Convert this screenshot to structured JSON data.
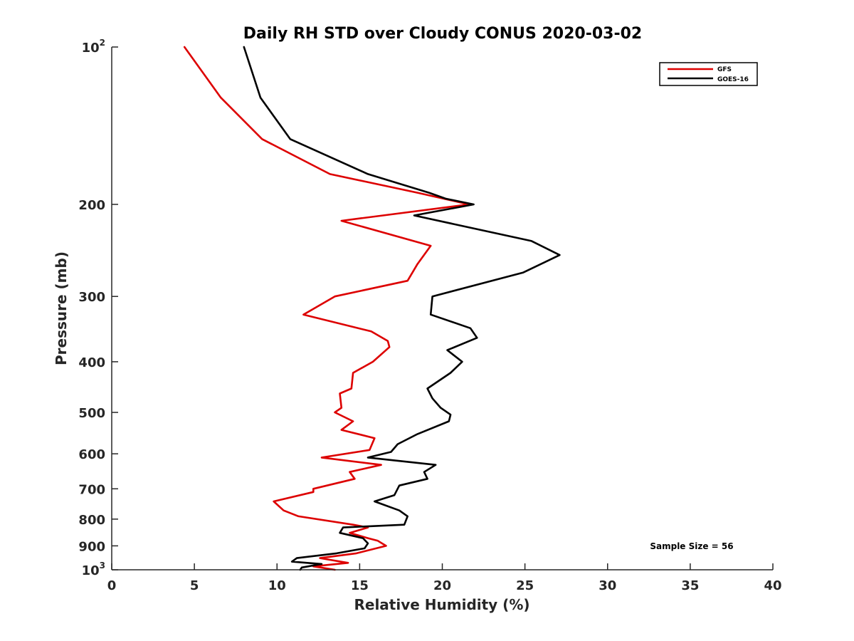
{
  "chart_data": {
    "type": "line",
    "title": "Daily RH STD over Cloudy CONUS 2020-03-02",
    "xlabel": "Relative Humidity (%)",
    "ylabel": "Pressure (mb)",
    "xlim": [
      0,
      40
    ],
    "ylim": [
      100,
      1000
    ],
    "yscale": "log",
    "yreversed": true,
    "xticks": [
      0,
      5,
      10,
      15,
      20,
      25,
      30,
      35,
      40
    ],
    "yticks": [
      {
        "value": 100,
        "base": "10",
        "exp": "2"
      },
      {
        "value": 200,
        "label": "200"
      },
      {
        "value": 300,
        "label": "300"
      },
      {
        "value": 400,
        "label": "400"
      },
      {
        "value": 500,
        "label": "500"
      },
      {
        "value": 600,
        "label": "600"
      },
      {
        "value": 700,
        "label": "700"
      },
      {
        "value": 800,
        "label": "800"
      },
      {
        "value": 900,
        "label": "900"
      },
      {
        "value": 1000,
        "base": "10",
        "exp": "3"
      }
    ],
    "legend_position": "top-right",
    "annotation": "Sample Size = 56",
    "series": [
      {
        "name": "GFS",
        "color": "#dd0000",
        "points": [
          [
            4.4,
            100
          ],
          [
            6.6,
            125
          ],
          [
            9.1,
            150
          ],
          [
            13.2,
            175
          ],
          [
            18.5,
            190
          ],
          [
            21.6,
            200
          ],
          [
            13.9,
            215
          ],
          [
            19.3,
            240
          ],
          [
            18.5,
            260
          ],
          [
            17.9,
            280
          ],
          [
            13.5,
            300
          ],
          [
            11.6,
            325
          ],
          [
            15.7,
            350
          ],
          [
            16.7,
            365
          ],
          [
            16.8,
            375
          ],
          [
            15.8,
            400
          ],
          [
            14.6,
            420
          ],
          [
            14.5,
            450
          ],
          [
            13.8,
            460
          ],
          [
            13.9,
            490
          ],
          [
            13.5,
            500
          ],
          [
            14.6,
            520
          ],
          [
            13.9,
            540
          ],
          [
            15.9,
            560
          ],
          [
            15.6,
            590
          ],
          [
            12.7,
            610
          ],
          [
            16.3,
            630
          ],
          [
            14.4,
            650
          ],
          [
            14.7,
            670
          ],
          [
            12.2,
            700
          ],
          [
            12.2,
            710
          ],
          [
            9.8,
            740
          ],
          [
            10.4,
            770
          ],
          [
            11.3,
            790
          ],
          [
            14.6,
            820
          ],
          [
            15.5,
            830
          ],
          [
            14.4,
            850
          ],
          [
            15.5,
            870
          ],
          [
            16.1,
            880
          ],
          [
            16.6,
            900
          ],
          [
            14.8,
            930
          ],
          [
            12.6,
            950
          ],
          [
            14.3,
            970
          ],
          [
            12.2,
            985
          ],
          [
            13.5,
            1000
          ]
        ]
      },
      {
        "name": "GOES-16",
        "color": "#000000",
        "points": [
          [
            8.0,
            100
          ],
          [
            9.0,
            125
          ],
          [
            10.8,
            150
          ],
          [
            15.5,
            175
          ],
          [
            19.2,
            190
          ],
          [
            20.2,
            195
          ],
          [
            21.9,
            200
          ],
          [
            18.3,
            210
          ],
          [
            25.4,
            235
          ],
          [
            27.1,
            250
          ],
          [
            24.9,
            270
          ],
          [
            19.4,
            300
          ],
          [
            19.3,
            325
          ],
          [
            21.7,
            345
          ],
          [
            22.1,
            360
          ],
          [
            20.3,
            380
          ],
          [
            21.2,
            400
          ],
          [
            20.5,
            420
          ],
          [
            19.1,
            450
          ],
          [
            19.4,
            470
          ],
          [
            19.9,
            490
          ],
          [
            20.5,
            505
          ],
          [
            20.4,
            520
          ],
          [
            18.5,
            550
          ],
          [
            17.3,
            575
          ],
          [
            16.9,
            595
          ],
          [
            15.5,
            610
          ],
          [
            19.6,
            630
          ],
          [
            18.9,
            650
          ],
          [
            19.1,
            670
          ],
          [
            17.4,
            690
          ],
          [
            17.1,
            720
          ],
          [
            15.9,
            740
          ],
          [
            17.4,
            770
          ],
          [
            17.9,
            790
          ],
          [
            17.7,
            820
          ],
          [
            14.0,
            830
          ],
          [
            13.8,
            850
          ],
          [
            15.2,
            870
          ],
          [
            15.5,
            890
          ],
          [
            15.3,
            910
          ],
          [
            13.6,
            930
          ],
          [
            11.2,
            950
          ],
          [
            10.9,
            965
          ],
          [
            12.7,
            975
          ],
          [
            11.5,
            990
          ],
          [
            11.4,
            1000
          ]
        ]
      }
    ]
  }
}
